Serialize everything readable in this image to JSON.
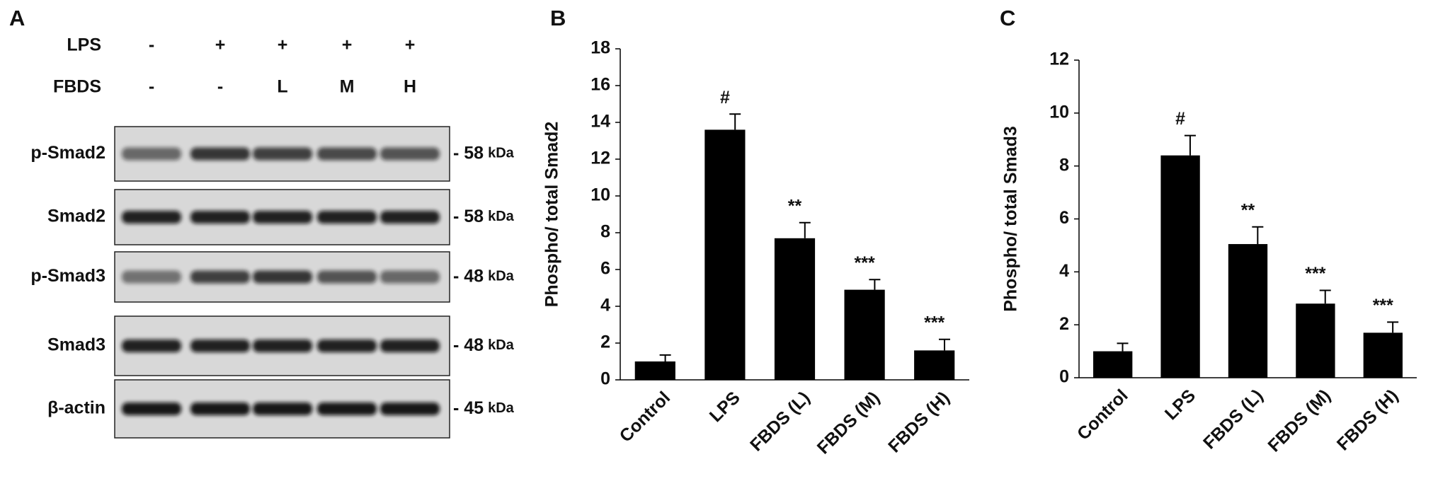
{
  "blot": {
    "panel": "A",
    "treatments": [
      {
        "name": "LPS",
        "lanes": [
          "-",
          "+",
          "+",
          "+",
          "+"
        ]
      },
      {
        "name": "FBDS",
        "lanes": [
          "-",
          "-",
          "L",
          "M",
          "H"
        ]
      }
    ],
    "rows": [
      {
        "label": "p-Smad2",
        "marker": "- 58",
        "unit": "kDa"
      },
      {
        "label": "Smad2",
        "marker": "- 58",
        "unit": "kDa"
      },
      {
        "label": "p-Smad3",
        "marker": "- 48",
        "unit": "kDa"
      },
      {
        "label": "Smad3",
        "marker": "- 48",
        "unit": "kDa"
      },
      {
        "label": "β-actin",
        "marker": "- 45",
        "unit": "kDa"
      }
    ]
  },
  "chart_data": [
    {
      "type": "bar",
      "panel": "B",
      "y_label": "Phospho/ total Smad2",
      "categories": [
        "Control",
        "LPS",
        "FBDS (L)",
        "FBDS (M)",
        "FBDS (H)"
      ],
      "values": [
        1.0,
        13.6,
        7.7,
        4.9,
        1.6
      ],
      "errors": [
        0.35,
        0.85,
        0.85,
        0.55,
        0.6
      ],
      "annotations": [
        null,
        "#",
        "**",
        "***",
        "***"
      ],
      "color": "#000000",
      "ylim": [
        0,
        18
      ],
      "yticks": [
        0,
        2,
        4,
        6,
        8,
        10,
        12,
        14,
        16,
        18
      ]
    },
    {
      "type": "bar",
      "panel": "C",
      "y_label": "Phospho/ total Smad3",
      "categories": [
        "Control",
        "LPS",
        "FBDS (L)",
        "FBDS (M)",
        "FBDS (H)"
      ],
      "values": [
        1.0,
        8.4,
        5.05,
        2.8,
        1.7
      ],
      "errors": [
        0.3,
        0.75,
        0.65,
        0.5,
        0.4
      ],
      "annotations": [
        null,
        "#",
        "**",
        "***",
        "***"
      ],
      "color": "#000000",
      "ylim": [
        0,
        12
      ],
      "yticks": [
        0,
        2,
        4,
        6,
        8,
        10,
        12
      ]
    }
  ]
}
